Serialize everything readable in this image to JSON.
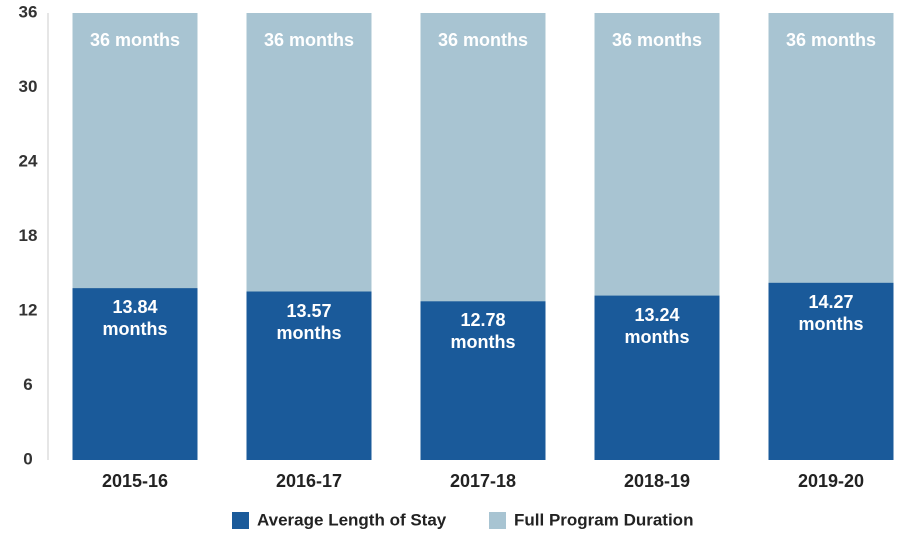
{
  "chart_data": {
    "type": "bar",
    "categories": [
      "2015-16",
      "2016-17",
      "2017-18",
      "2018-19",
      "2019-20"
    ],
    "series": [
      {
        "name": "Average Length of Stay",
        "color": "#1a5a9a",
        "values": [
          13.84,
          13.57,
          12.78,
          13.24,
          14.27
        ],
        "value_labels": [
          "13.84 months",
          "13.57 months",
          "12.78 months",
          "13.24 months",
          "14.27 months"
        ]
      },
      {
        "name": "Full Program Duration",
        "color": "#a8c4d2",
        "values": [
          36,
          36,
          36,
          36,
          36
        ],
        "value_labels": [
          "36 months",
          "36 months",
          "36 months",
          "36 months",
          "36 months"
        ]
      }
    ],
    "ylim": [
      0,
      36
    ],
    "yticks": [
      0,
      6,
      12,
      18,
      24,
      30,
      36
    ]
  }
}
